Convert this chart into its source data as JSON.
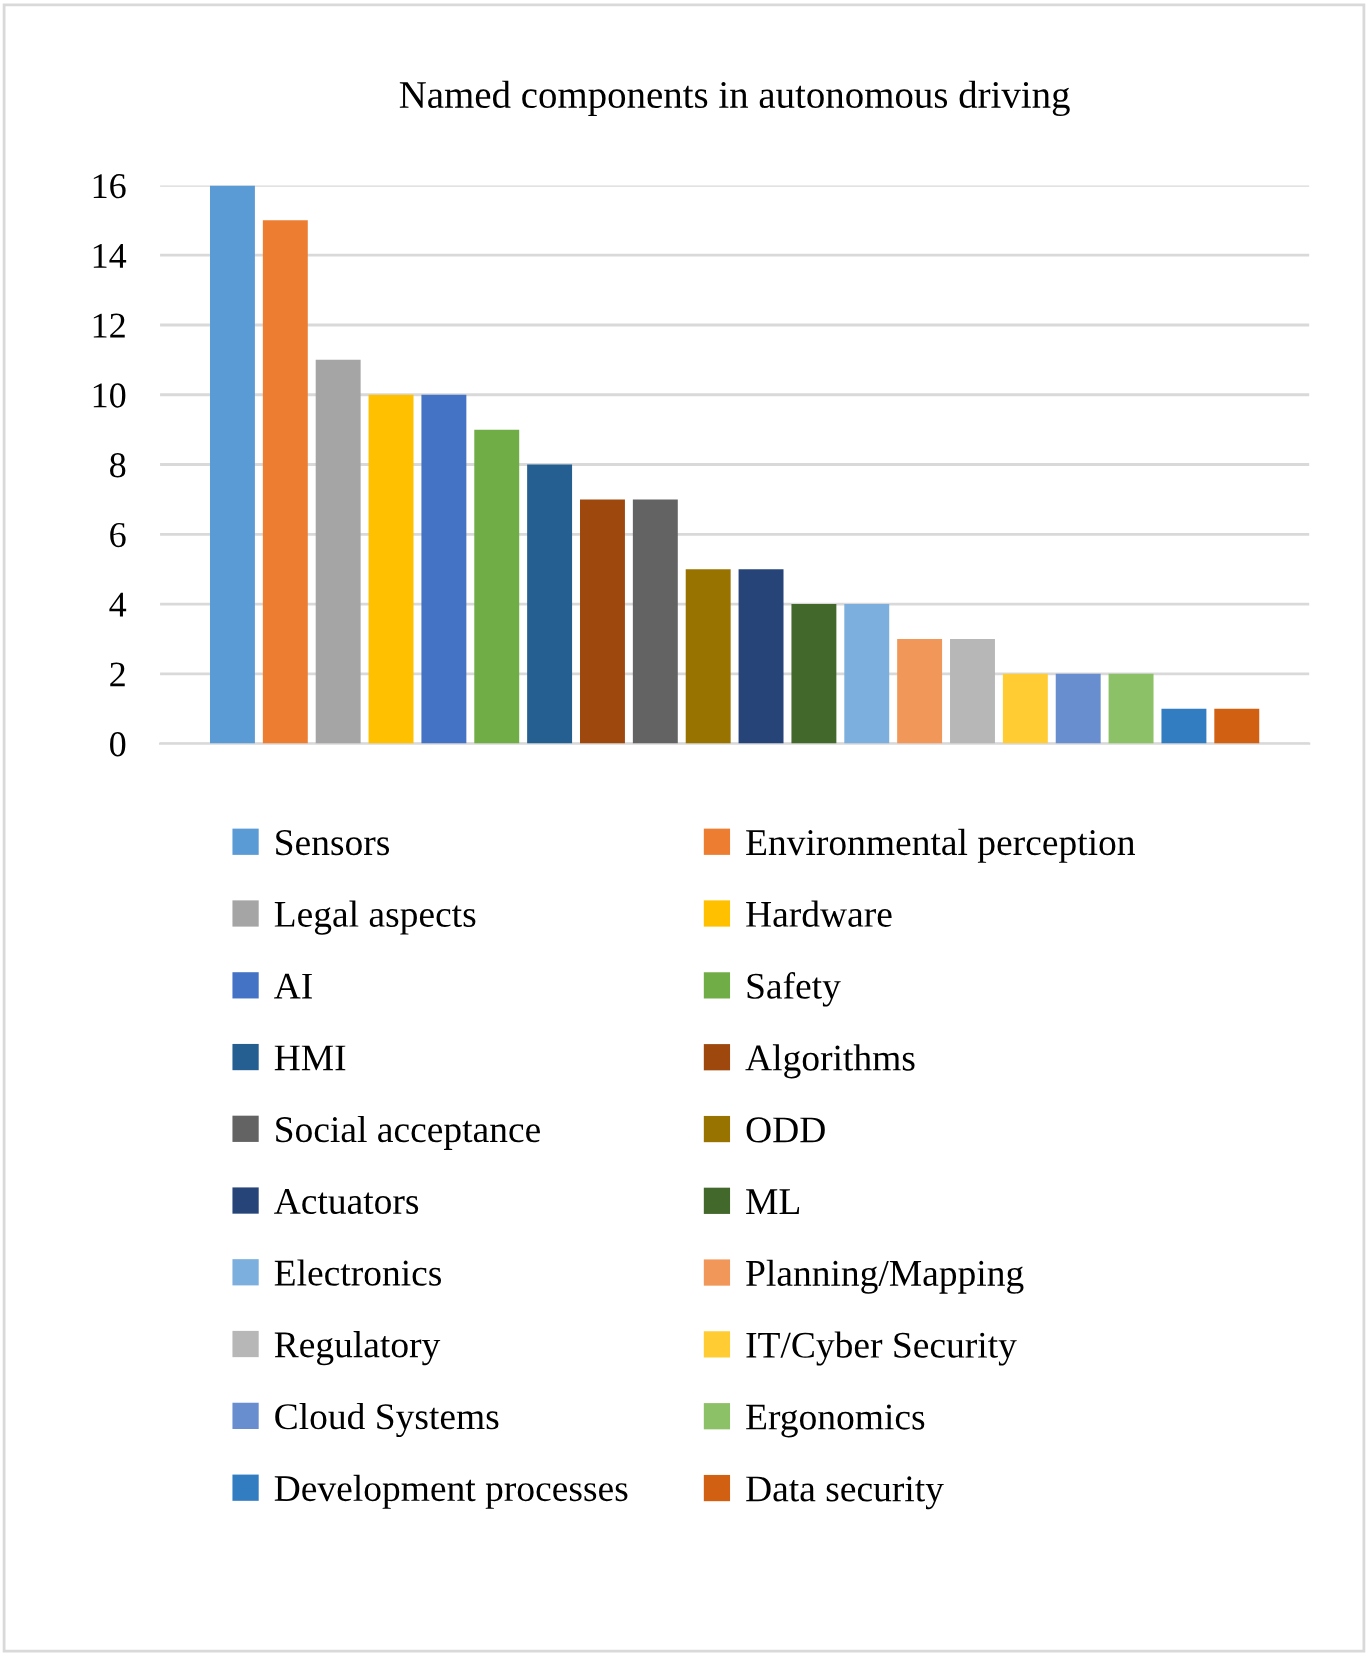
{
  "chart_data": {
    "type": "bar",
    "title": "Named components in autonomous driving",
    "categories": [
      null
    ],
    "series": [
      {
        "name": "Sensors",
        "color": "#5b9bd5",
        "values": [
          16
        ]
      },
      {
        "name": "Environmental perception",
        "color": "#ed7d31",
        "values": [
          15
        ]
      },
      {
        "name": "Legal aspects",
        "color": "#a5a5a5",
        "values": [
          11
        ]
      },
      {
        "name": "Hardware",
        "color": "#ffc000",
        "values": [
          10
        ]
      },
      {
        "name": "AI",
        "color": "#4472c4",
        "values": [
          10
        ]
      },
      {
        "name": "Safety",
        "color": "#70ad47",
        "values": [
          9
        ]
      },
      {
        "name": "HMI",
        "color": "#255e91",
        "values": [
          8
        ]
      },
      {
        "name": "Algorithms",
        "color": "#9e480e",
        "values": [
          7
        ]
      },
      {
        "name": "Social acceptance",
        "color": "#636363",
        "values": [
          7
        ]
      },
      {
        "name": "ODD",
        "color": "#997300",
        "values": [
          5
        ]
      },
      {
        "name": "Actuators",
        "color": "#264478",
        "values": [
          5
        ]
      },
      {
        "name": "ML",
        "color": "#43682b",
        "values": [
          4
        ]
      },
      {
        "name": "Electronics",
        "color": "#7cafdd",
        "values": [
          4
        ]
      },
      {
        "name": "Planning/Mapping",
        "color": "#f1975a",
        "values": [
          3
        ]
      },
      {
        "name": "Regulatory",
        "color": "#b7b7b7",
        "values": [
          3
        ]
      },
      {
        "name": "IT/Cyber Security",
        "color": "#ffcd33",
        "values": [
          2
        ]
      },
      {
        "name": "Cloud Systems",
        "color": "#698ed0",
        "values": [
          2
        ]
      },
      {
        "name": "Ergonomics",
        "color": "#8cc168",
        "values": [
          2
        ]
      },
      {
        "name": "Development processes",
        "color": "#327dc2",
        "values": [
          1
        ]
      },
      {
        "name": "Data security",
        "color": "#d26012",
        "values": [
          1
        ]
      }
    ],
    "ylim": [
      0,
      16
    ],
    "yticks": [
      0,
      2,
      4,
      6,
      8,
      10,
      12,
      14,
      16
    ],
    "grid": "y",
    "legend": "bottom"
  }
}
